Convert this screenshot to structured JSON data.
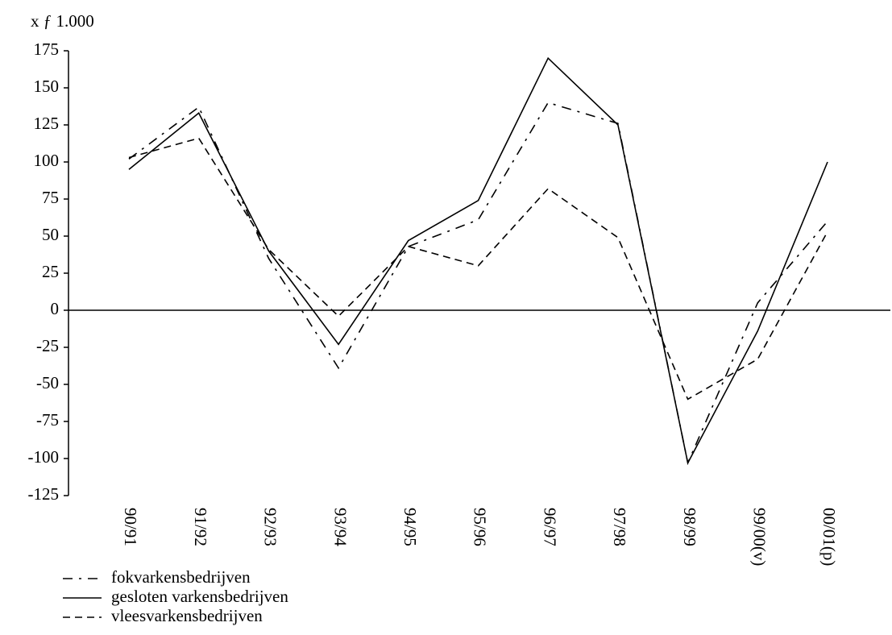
{
  "chart_data": {
    "type": "line",
    "y_label": "x ƒ 1.000",
    "categories": [
      "90/91",
      "91/92",
      "92/93",
      "93/94",
      "94/95",
      "95/96",
      "96/97",
      "97/98",
      "98/99",
      "99/00(v)",
      "00/01(p)"
    ],
    "series": [
      {
        "name": "fokvarkensbedrijven",
        "color": "#000000",
        "style": "dashdot",
        "values": [
          102,
          137,
          35,
          -39,
          43,
          61,
          140,
          126,
          -103,
          5,
          60
        ]
      },
      {
        "name": "gesloten varkensbedrijven",
        "color": "#000000",
        "style": "solid",
        "values": [
          95,
          133,
          40,
          -23,
          47,
          74,
          170,
          125,
          -103,
          -14,
          100
        ]
      },
      {
        "name": "vleesvarkensbedrijven",
        "color": "#000000",
        "style": "dashed",
        "values": [
          103,
          116,
          41,
          -4,
          43,
          30,
          82,
          49,
          -60,
          -33,
          53
        ]
      }
    ],
    "ylim": [
      -125,
      175
    ],
    "yticks": [
      175,
      150,
      125,
      100,
      75,
      50,
      25,
      0,
      -25,
      -50,
      -75,
      -100,
      -125
    ]
  }
}
